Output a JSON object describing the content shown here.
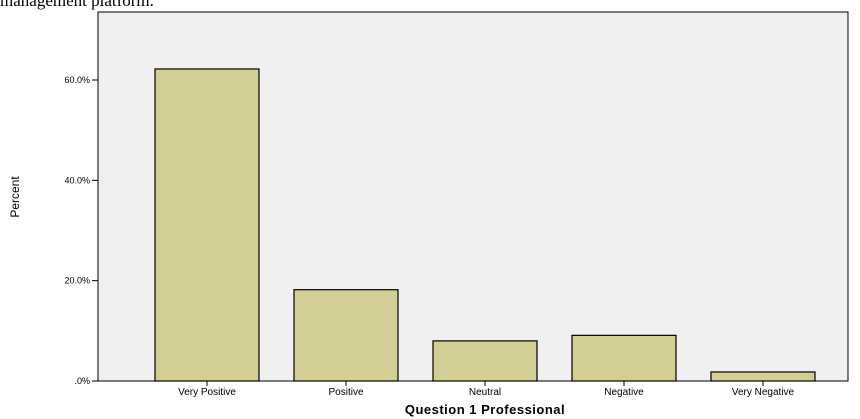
{
  "caption_fragment": "management platform.",
  "chart_data": {
    "type": "bar",
    "categories": [
      "Very Positive",
      "Positive",
      "Neutral",
      "Negative",
      "Very Negative"
    ],
    "values": [
      62.2,
      18.2,
      8.0,
      9.1,
      1.8
    ],
    "title": "",
    "xlabel": "Question 1 Professional",
    "ylabel": "Percent",
    "ylim": [
      0,
      74
    ],
    "yticks": [
      0,
      20,
      40,
      60
    ],
    "ytick_labels": [
      ".0%",
      "20.0%",
      "40.0%",
      "60.0%"
    ],
    "grid": false,
    "colors": {
      "bar_fill": "#d3cd96",
      "bar_stroke": "#000000",
      "plot_background": "#f0f0f0"
    }
  }
}
